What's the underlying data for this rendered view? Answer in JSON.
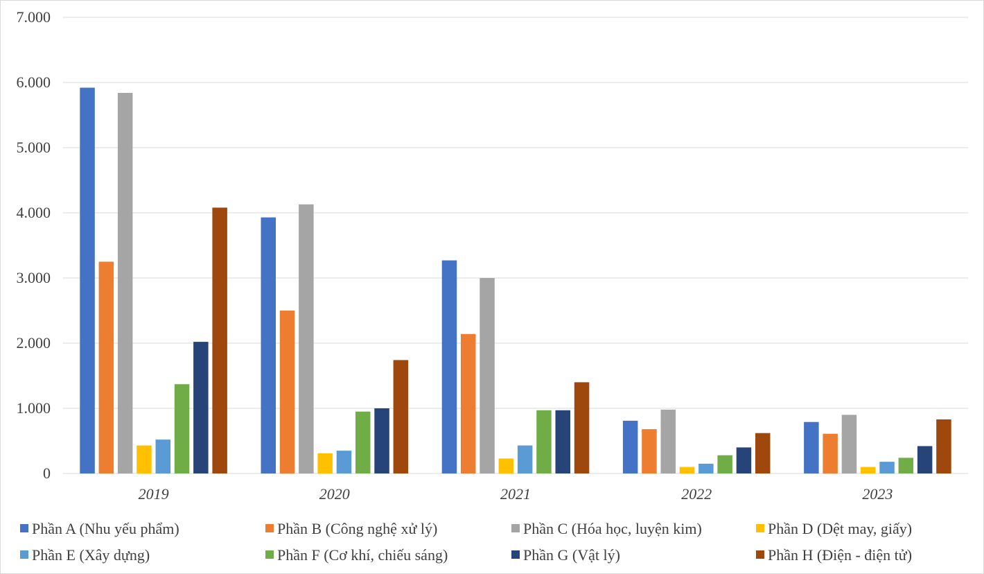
{
  "chart_data": {
    "type": "bar",
    "categories": [
      "2019",
      "2020",
      "2021",
      "2022",
      "2023"
    ],
    "ylim": [
      0,
      7000
    ],
    "yticks": [
      {
        "value": 0,
        "label": "0"
      },
      {
        "value": 1000,
        "label": "1.000"
      },
      {
        "value": 2000,
        "label": "2.000"
      },
      {
        "value": 3000,
        "label": "3.000"
      },
      {
        "value": 4000,
        "label": "4.000"
      },
      {
        "value": 5000,
        "label": "5.000"
      },
      {
        "value": 6000,
        "label": "6.000"
      },
      {
        "value": 7000,
        "label": "7.000"
      }
    ],
    "grid": true,
    "legend_position": "bottom",
    "title": "",
    "xlabel": "",
    "ylabel": "",
    "series": [
      {
        "name": "Phần A (Nhu yếu phẩm)",
        "color": "#4472C4",
        "values": [
          5920,
          3930,
          3270,
          810,
          790
        ]
      },
      {
        "name": "Phần B (Công nghệ xử lý)",
        "color": "#ED7D31",
        "values": [
          3250,
          2500,
          2140,
          680,
          610
        ]
      },
      {
        "name": "Phần C (Hóa học, luyện kim)",
        "color": "#A5A5A5",
        "values": [
          5840,
          4130,
          3000,
          980,
          900
        ]
      },
      {
        "name": "Phần D (Dệt may, giấy)",
        "color": "#FFC000",
        "values": [
          430,
          310,
          230,
          100,
          100
        ]
      },
      {
        "name": "Phần E (Xây dựng)",
        "color": "#5B9BD5",
        "values": [
          520,
          350,
          430,
          150,
          180
        ]
      },
      {
        "name": "Phần F (Cơ khí, chiếu sáng)",
        "color": "#70AD47",
        "values": [
          1370,
          950,
          970,
          280,
          240
        ]
      },
      {
        "name": "Phần G (Vật lý)",
        "color": "#264478",
        "values": [
          2020,
          1000,
          970,
          400,
          420
        ]
      },
      {
        "name": "Phần H (Điện - điện tử)",
        "color": "#9E480E",
        "values": [
          4080,
          1740,
          1400,
          620,
          830
        ]
      }
    ]
  }
}
